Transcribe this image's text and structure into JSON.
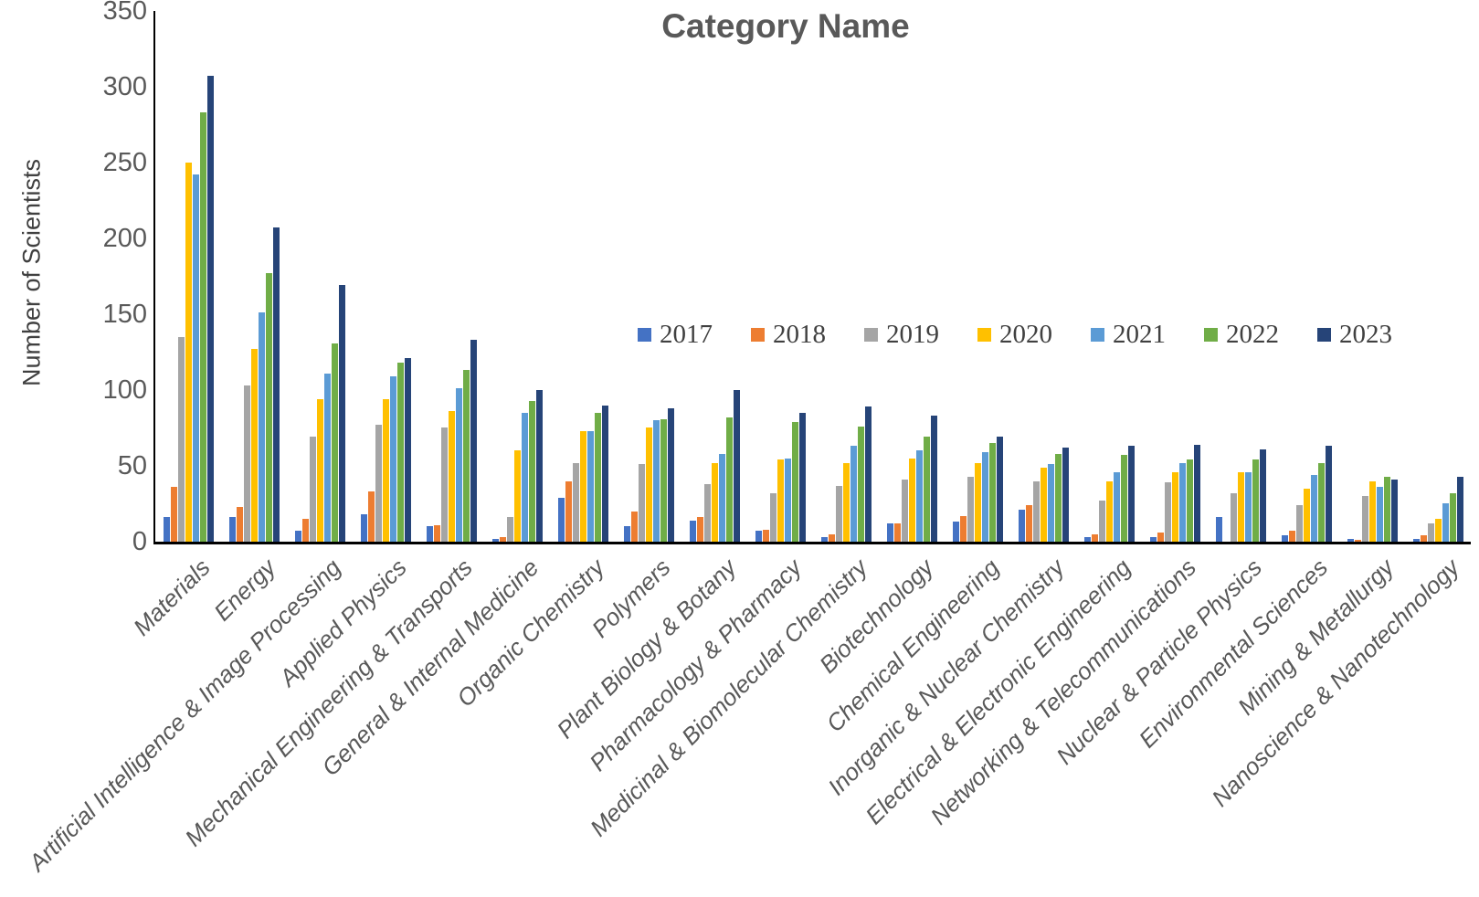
{
  "title": "Category Name",
  "y_axis": {
    "label": "Number of Scientists",
    "min": 0,
    "max": 350,
    "step": 50,
    "ticks": [
      0,
      50,
      100,
      150,
      200,
      250,
      300,
      350
    ]
  },
  "legend": {
    "items": [
      {
        "label": "2017",
        "color": "#4472C4"
      },
      {
        "label": "2018",
        "color": "#ED7D31"
      },
      {
        "label": "2019",
        "color": "#A5A5A5"
      },
      {
        "label": "2020",
        "color": "#FFC000"
      },
      {
        "label": "2021",
        "color": "#5B9BD5"
      },
      {
        "label": "2022",
        "color": "#70AD47"
      },
      {
        "label": "2023",
        "color": "#264478"
      }
    ]
  },
  "chart_data": {
    "type": "bar",
    "title": "Category Name",
    "xlabel": "",
    "ylabel": "Number of Scientists",
    "ylim": [
      0,
      350
    ],
    "ytick_step": 50,
    "grid": false,
    "legend_position": "inside-middle-right",
    "categories": [
      "Materials",
      "Energy",
      "Artificial Intelligence & Image Processing",
      "Applied Physics",
      "Mechanical Engineering & Transports",
      "General & Internal Medicine",
      "Organic Chemistry",
      "Polymers",
      "Plant Biology & Botany",
      "Pharmacology & Pharmacy",
      "Medicinal & Biomolecular Chemistry",
      "Biotechnology",
      "Chemical Engineering",
      "Inorganic & Nuclear Chemistry",
      "Electrical & Electronic Engineering",
      "Networking & Telecommunications",
      "Nuclear & Particle Physics",
      "Environmental Sciences",
      "Mining & Metallurgy",
      "Nanoscience & Nanotechnology"
    ],
    "series": [
      {
        "name": "2017",
        "color": "#4472C4",
        "values": [
          16,
          16,
          7,
          18,
          10,
          2,
          29,
          10,
          14,
          7,
          3,
          12,
          13,
          21,
          3,
          3,
          16,
          4,
          2,
          2
        ]
      },
      {
        "name": "2018",
        "color": "#ED7D31",
        "values": [
          36,
          23,
          15,
          33,
          11,
          3,
          40,
          20,
          16,
          8,
          5,
          12,
          17,
          24,
          5,
          6,
          0,
          7,
          1,
          4
        ]
      },
      {
        "name": "2019",
        "color": "#A5A5A5",
        "values": [
          135,
          103,
          69,
          77,
          75,
          16,
          52,
          51,
          38,
          32,
          37,
          41,
          43,
          40,
          27,
          39,
          32,
          24,
          30,
          12
        ]
      },
      {
        "name": "2020",
        "color": "#FFC000",
        "values": [
          250,
          127,
          94,
          94,
          86,
          60,
          73,
          75,
          52,
          54,
          52,
          55,
          52,
          49,
          40,
          46,
          46,
          35,
          40,
          15
        ]
      },
      {
        "name": "2021",
        "color": "#5B9BD5",
        "values": [
          242,
          151,
          111,
          109,
          101,
          85,
          73,
          80,
          58,
          55,
          63,
          60,
          59,
          51,
          46,
          52,
          46,
          44,
          36,
          25
        ]
      },
      {
        "name": "2022",
        "color": "#70AD47",
        "values": [
          283,
          177,
          131,
          118,
          113,
          93,
          85,
          81,
          82,
          79,
          76,
          69,
          65,
          58,
          57,
          54,
          54,
          52,
          43,
          32
        ]
      },
      {
        "name": "2023",
        "color": "#264478",
        "values": [
          307,
          207,
          169,
          121,
          133,
          100,
          90,
          88,
          100,
          85,
          89,
          83,
          69,
          62,
          63,
          64,
          61,
          63,
          41,
          43
        ]
      }
    ]
  }
}
